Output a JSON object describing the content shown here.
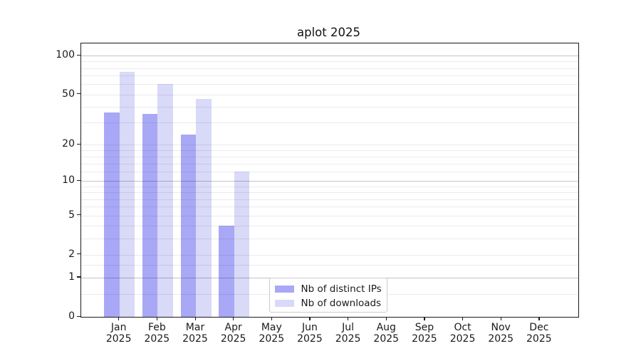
{
  "title": "aplot 2025",
  "colors": {
    "ips_bar": "#a8a8f6",
    "downloads_bar": "#d9d9f8",
    "grid_strong": "#c4c4c4",
    "grid_minor": "#ebebeb",
    "spine": "#1a1a1a",
    "text": "#1a1a1a"
  },
  "legend": {
    "items": [
      {
        "label": "Nb of distinct IPs",
        "series": "ips"
      },
      {
        "label": "Nb of downloads",
        "series": "downloads"
      }
    ]
  },
  "chart_data": {
    "type": "bar",
    "title": "aplot 2025",
    "categories": [
      "Jan",
      "Feb",
      "Mar",
      "Apr",
      "May",
      "Jun",
      "Jul",
      "Aug",
      "Sep",
      "Oct",
      "Nov",
      "Dec"
    ],
    "year_label": "2025",
    "series": [
      {
        "name": "Nb of distinct IPs",
        "values": [
          36,
          35,
          24,
          4,
          0,
          0,
          0,
          0,
          0,
          0,
          0,
          0
        ]
      },
      {
        "name": "Nb of downloads",
        "values": [
          75,
          60,
          46,
          12,
          0,
          0,
          0,
          0,
          0,
          0,
          0,
          0
        ]
      }
    ],
    "xlabel": "",
    "ylabel": "",
    "y_scale": "log10(1+x)",
    "ylim": [
      0,
      125
    ],
    "y_tick_values": [
      100,
      50,
      20,
      10,
      5,
      2,
      1,
      0
    ],
    "y_tick_labels": [
      "100",
      "50",
      "20",
      "10",
      "5",
      "2",
      "1",
      "0"
    ],
    "grid_strong_values": [
      1,
      10,
      100
    ],
    "grid_light_values": [
      2,
      5,
      20,
      50
    ],
    "grid_minor_values": [
      0.5,
      1.5,
      3,
      4,
      6,
      7,
      8,
      9,
      12,
      14,
      16,
      18,
      30,
      40,
      60,
      70,
      80,
      90
    ],
    "grid": "on",
    "legend_position": "lower-center-inside"
  }
}
